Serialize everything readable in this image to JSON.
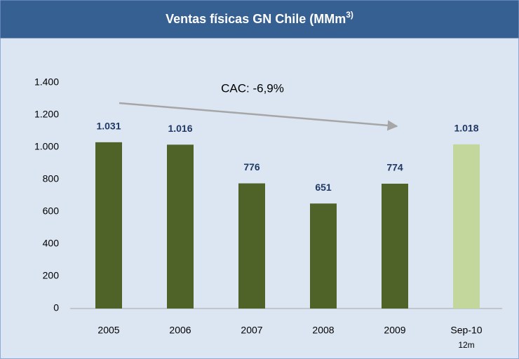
{
  "chart_data": {
    "type": "bar",
    "title": "Ventas físicas GN Chile (MMm",
    "title_superscript": "3)",
    "categories": [
      "2005",
      "2006",
      "2007",
      "2008",
      "2009",
      "Sep-10"
    ],
    "category_sublabels": [
      null,
      null,
      null,
      null,
      null,
      "12m"
    ],
    "values": [
      1031,
      1016,
      776,
      651,
      774,
      1018
    ],
    "value_labels": [
      "1.031",
      "1.016",
      "776",
      "651",
      "774",
      "1.018"
    ],
    "colors": [
      "#4f6228",
      "#4f6228",
      "#4f6228",
      "#4f6228",
      "#4f6228",
      "#c3d69b"
    ],
    "ylim": [
      0,
      1400
    ],
    "yticks": [
      0,
      200,
      400,
      600,
      800,
      {
        "value": 1000,
        "label": "1.000"
      },
      {
        "value": 1200,
        "label": "1.200"
      },
      {
        "value": 1400,
        "label": "1.400"
      }
    ],
    "grid": false,
    "annotation": "CAC: -6,9%"
  }
}
